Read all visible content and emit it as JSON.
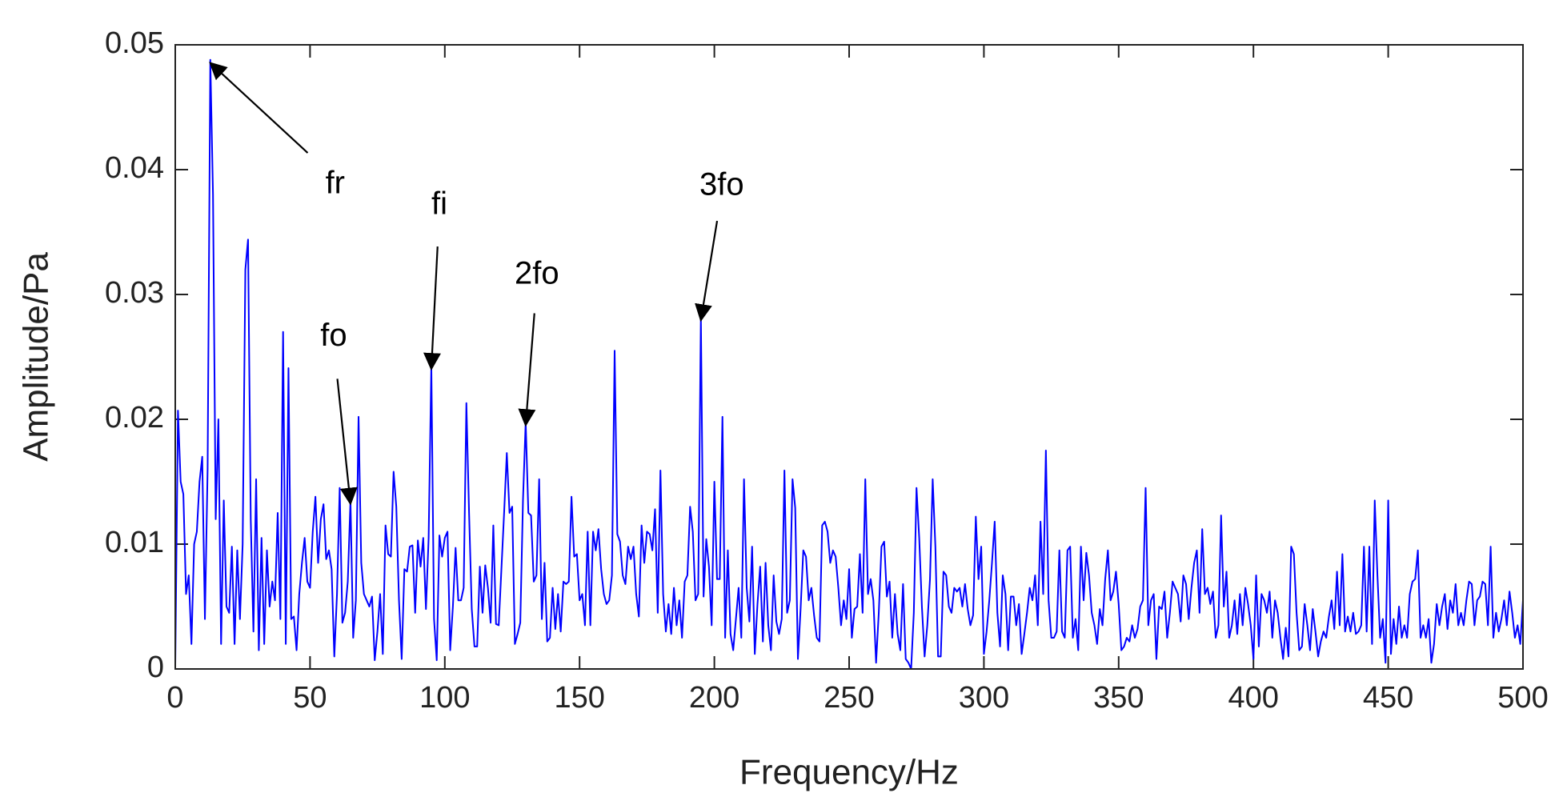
{
  "chart_data": {
    "type": "line",
    "xlabel": "Frequency/Hz",
    "ylabel": "Amplitude/Pa",
    "xlim": [
      0,
      500
    ],
    "ylim": [
      0,
      0.05
    ],
    "xticks": [
      0,
      50,
      100,
      150,
      200,
      250,
      300,
      350,
      400,
      450,
      500
    ],
    "yticks": [
      0,
      0.01,
      0.02,
      0.03,
      0.04,
      0.05
    ],
    "grid": false,
    "annotations": [
      {
        "text": "fr",
        "x": 13,
        "y": 0.0488
      },
      {
        "text": "fo",
        "x": 65,
        "y": 0.0135
      },
      {
        "text": "fi",
        "x": 95,
        "y": 0.0243
      },
      {
        "text": "2fo",
        "x": 130,
        "y": 0.0198
      },
      {
        "text": "3fo",
        "x": 195,
        "y": 0.0282
      }
    ],
    "series": [
      {
        "color": "#0000ff",
        "x": [
          0,
          1,
          2,
          3,
          4,
          5,
          6,
          7,
          8,
          9,
          10,
          11,
          12,
          13,
          14,
          15,
          16,
          17,
          18,
          19,
          20,
          21,
          22,
          23,
          24,
          25,
          26,
          27,
          28,
          29,
          30,
          31,
          32,
          33,
          34,
          35,
          36,
          37,
          38,
          39,
          40,
          41,
          42,
          43,
          44,
          45,
          46,
          47,
          48,
          49,
          50,
          51,
          52,
          53,
          54,
          55,
          56,
          57,
          58,
          59,
          60,
          61,
          62,
          63,
          64,
          65,
          66,
          67,
          68,
          69,
          70,
          71,
          72,
          73,
          74,
          75,
          76,
          77,
          78,
          79,
          80,
          81,
          82,
          83,
          84,
          85,
          86,
          87,
          88,
          89,
          90,
          91,
          92,
          93,
          94,
          95,
          96,
          97,
          98,
          99,
          100,
          101,
          102,
          103,
          104,
          105,
          106,
          107,
          108,
          109,
          110,
          111,
          112,
          113,
          114,
          115,
          116,
          117,
          118,
          119,
          120,
          121,
          122,
          123,
          124,
          125,
          126,
          127,
          128,
          129,
          130,
          131,
          132,
          133,
          134,
          135,
          136,
          137,
          138,
          139,
          140,
          141,
          142,
          143,
          144,
          145,
          146,
          147,
          148,
          149,
          150,
          151,
          152,
          153,
          154,
          155,
          156,
          157,
          158,
          159,
          160,
          161,
          162,
          163,
          164,
          165,
          166,
          167,
          168,
          169,
          170,
          171,
          172,
          173,
          174,
          175,
          176,
          177,
          178,
          179,
          180,
          181,
          182,
          183,
          184,
          185,
          186,
          187,
          188,
          189,
          190,
          191,
          192,
          193,
          194,
          195,
          196,
          197,
          198,
          199,
          200,
          201,
          202,
          203,
          204,
          205,
          206,
          207,
          208,
          209,
          210,
          211,
          212,
          213,
          214,
          215,
          216,
          217,
          218,
          219,
          220,
          221,
          222,
          223,
          224,
          225,
          226,
          227,
          228,
          229,
          230,
          231,
          232,
          233,
          234,
          235,
          236,
          237,
          238,
          239,
          240,
          241,
          242,
          243,
          244,
          245,
          246,
          247,
          248,
          249,
          250,
          251,
          252,
          253,
          254,
          255,
          256,
          257,
          258,
          259,
          260,
          261,
          262,
          263,
          264,
          265,
          266,
          267,
          268,
          269,
          270,
          271,
          272,
          273,
          274,
          275,
          276,
          277,
          278,
          279,
          280,
          281,
          282,
          283,
          284,
          285,
          286,
          287,
          288,
          289,
          290,
          291,
          292,
          293,
          294,
          295,
          296,
          297,
          298,
          299,
          300,
          301,
          302,
          303,
          304,
          305,
          306,
          307,
          308,
          309,
          310,
          311,
          312,
          313,
          314,
          315,
          316,
          317,
          318,
          319,
          320,
          321,
          322,
          323,
          324,
          325,
          326,
          327,
          328,
          329,
          330,
          331,
          332,
          333,
          334,
          335,
          336,
          337,
          338,
          339,
          340,
          341,
          342,
          343,
          344,
          345,
          346,
          347,
          348,
          349,
          350,
          351,
          352,
          353,
          354,
          355,
          356,
          357,
          358,
          359,
          360,
          361,
          362,
          363,
          364,
          365,
          366,
          367,
          368,
          369,
          370,
          371,
          372,
          373,
          374,
          375,
          376,
          377,
          378,
          379,
          380,
          381,
          382,
          383,
          384,
          385,
          386,
          387,
          388,
          389,
          390,
          391,
          392,
          393,
          394,
          395,
          396,
          397,
          398,
          399,
          400,
          401,
          402,
          403,
          404,
          405,
          406,
          407,
          408,
          409,
          410,
          411,
          412,
          413,
          414,
          415,
          416,
          417,
          418,
          419,
          420,
          421,
          422,
          423,
          424,
          425,
          426,
          427,
          428,
          429,
          430,
          431,
          432,
          433,
          434,
          435,
          436,
          437,
          438,
          439,
          440,
          441,
          442,
          443,
          444,
          445,
          446,
          447,
          448,
          449,
          450,
          451,
          452,
          453,
          454,
          455,
          456,
          457,
          458,
          459,
          460,
          461,
          462,
          463,
          464,
          465,
          466,
          467,
          468,
          469,
          470,
          471,
          472,
          473,
          474,
          475,
          476,
          477,
          478,
          479,
          480,
          481,
          482,
          483,
          484,
          485,
          486,
          487,
          488,
          489,
          490,
          491,
          492,
          493,
          494,
          495,
          496,
          497,
          498,
          499,
          500
        ],
        "values": [
          0.0003,
          0.0207,
          0.015,
          0.014,
          0.006,
          0.0075,
          0.002,
          0.01,
          0.011,
          0.015,
          0.017,
          0.004,
          0.016,
          0.0488,
          0.038,
          0.012,
          0.02,
          0.002,
          0.0135,
          0.005,
          0.0045,
          0.0098,
          0.002,
          0.0095,
          0.004,
          0.01,
          0.032,
          0.0344,
          0.012,
          0.003,
          0.0152,
          0.0015,
          0.0105,
          0.002,
          0.0095,
          0.005,
          0.007,
          0.0055,
          0.0125,
          0.004,
          0.027,
          0.002,
          0.0241,
          0.004,
          0.0042,
          0.0015,
          0.006,
          0.0085,
          0.0105,
          0.007,
          0.0065,
          0.011,
          0.0138,
          0.0085,
          0.012,
          0.0132,
          0.0088,
          0.0095,
          0.008,
          0.001,
          0.006,
          0.0145,
          0.0037,
          0.0045,
          0.007,
          0.0135,
          0.0025,
          0.0055,
          0.0202,
          0.0085,
          0.006,
          0.0055,
          0.005,
          0.0058,
          0.0007,
          0.003,
          0.006,
          0.0012,
          0.0115,
          0.0092,
          0.009,
          0.0158,
          0.013,
          0.0055,
          0.0008,
          0.008,
          0.0078,
          0.0098,
          0.0099,
          0.0045,
          0.0103,
          0.0082,
          0.0105,
          0.0048,
          0.0105,
          0.0243,
          0.004,
          0.0007,
          0.0107,
          0.009,
          0.0105,
          0.011,
          0.0015,
          0.005,
          0.0097,
          0.0055,
          0.0055,
          0.0065,
          0.0213,
          0.0125,
          0.0048,
          0.0018,
          0.0018,
          0.0082,
          0.0045,
          0.0083,
          0.0065,
          0.0037,
          0.0115,
          0.0036,
          0.0035,
          0.008,
          0.0125,
          0.0173,
          0.0125,
          0.013,
          0.002,
          0.0028,
          0.0037,
          0.0135,
          0.0198,
          0.0125,
          0.0123,
          0.007,
          0.0075,
          0.0152,
          0.004,
          0.0085,
          0.0022,
          0.0025,
          0.0065,
          0.0032,
          0.006,
          0.003,
          0.007,
          0.0068,
          0.007,
          0.0138,
          0.009,
          0.0092,
          0.0055,
          0.006,
          0.0035,
          0.011,
          0.0035,
          0.011,
          0.0095,
          0.0112,
          0.008,
          0.006,
          0.0052,
          0.0055,
          0.0075,
          0.0255,
          0.0108,
          0.0102,
          0.0075,
          0.0068,
          0.0098,
          0.0088,
          0.0098,
          0.006,
          0.0042,
          0.0115,
          0.0085,
          0.011,
          0.0108,
          0.0095,
          0.0128,
          0.0045,
          0.0159,
          0.006,
          0.003,
          0.0052,
          0.0028,
          0.0065,
          0.0035,
          0.0055,
          0.0025,
          0.007,
          0.0075,
          0.013,
          0.011,
          0.0055,
          0.006,
          0.0282,
          0.0058,
          0.0104,
          0.0082,
          0.0035,
          0.015,
          0.0072,
          0.0072,
          0.0202,
          0.0025,
          0.0095,
          0.0028,
          0.0015,
          0.004,
          0.0065,
          0.0025,
          0.0152,
          0.0065,
          0.0038,
          0.0098,
          0.0012,
          0.0052,
          0.0082,
          0.0022,
          0.0085,
          0.0035,
          0.0015,
          0.0075,
          0.0038,
          0.0028,
          0.004,
          0.0159,
          0.0045,
          0.0055,
          0.0152,
          0.0129,
          0.0008,
          0.0048,
          0.0095,
          0.009,
          0.0055,
          0.0065,
          0.0043,
          0.0025,
          0.0022,
          0.0115,
          0.0118,
          0.011,
          0.0085,
          0.0095,
          0.009,
          0.0065,
          0.0035,
          0.0055,
          0.004,
          0.008,
          0.0025,
          0.0048,
          0.005,
          0.0092,
          0.0045,
          0.0152,
          0.006,
          0.0072,
          0.0055,
          0.0005,
          0.0045,
          0.0098,
          0.0102,
          0.0058,
          0.007,
          0.0025,
          0.006,
          0.0028,
          0.0015,
          0.0068,
          0.0008,
          0.0005,
          0,
          0.0045,
          0.0145,
          0.0105,
          0.005,
          0.001,
          0.0035,
          0.0072,
          0.0152,
          0.0098,
          0.001,
          0.001,
          0.0078,
          0.0075,
          0.005,
          0.0045,
          0.0065,
          0.0062,
          0.0065,
          0.005,
          0.0068,
          0.0048,
          0.0035,
          0.0043,
          0.0122,
          0.0072,
          0.0098,
          0.0012,
          0.003,
          0.0055,
          0.0085,
          0.0118,
          0.0045,
          0.0018,
          0.0075,
          0.006,
          0.0015,
          0.0058,
          0.0058,
          0.0035,
          0.0052,
          0.0012,
          0.0028,
          0.0045,
          0.0065,
          0.0055,
          0.0075,
          0.0035,
          0.0118,
          0.006,
          0.0175,
          0.0055,
          0.0025,
          0.0025,
          0.003,
          0.0095,
          0.003,
          0.0025,
          0.0095,
          0.0098,
          0.0025,
          0.004,
          0.0015,
          0.0098,
          0.0055,
          0.0093,
          0.0075,
          0.0045,
          0.0035,
          0.002,
          0.0048,
          0.0035,
          0.0072,
          0.0095,
          0.0055,
          0.0062,
          0.0078,
          0.0052,
          0.0015,
          0.0018,
          0.0025,
          0.0022,
          0.0035,
          0.0025,
          0.0032,
          0.005,
          0.0055,
          0.0145,
          0.0035,
          0.0055,
          0.006,
          0.0008,
          0.005,
          0.0048,
          0.0062,
          0.0025,
          0.0045,
          0.007,
          0.0065,
          0.006,
          0.0038,
          0.0075,
          0.0068,
          0.004,
          0.0065,
          0.0085,
          0.0095,
          0.0045,
          0.0112,
          0.006,
          0.0065,
          0.0052,
          0.0062,
          0.0025,
          0.0035,
          0.0123,
          0.005,
          0.0078,
          0.0025,
          0.0035,
          0.0055,
          0.0028,
          0.006,
          0.0035,
          0.0065,
          0.0052,
          0.0035,
          0.0008,
          0.0075,
          0.0018,
          0.006,
          0.0055,
          0.0045,
          0.0062,
          0.0025,
          0.0055,
          0.0045,
          0.0025,
          0.0008,
          0.0033,
          0.001,
          0.0098,
          0.0092,
          0.0045,
          0.0015,
          0.0018,
          0.0052,
          0.0035,
          0.0015,
          0.0048,
          0.003,
          0.001,
          0.0022,
          0.003,
          0.0025,
          0.0042,
          0.0055,
          0.0032,
          0.0078,
          0.0035,
          0.0092,
          0.003,
          0.0042,
          0.003,
          0.0045,
          0.0028,
          0.003,
          0.0035,
          0.0098,
          0.003,
          0.0098,
          0.002,
          0.0135,
          0.0075,
          0.0025,
          0.004,
          0.0005,
          0.0135,
          0.0012,
          0.004,
          0.002,
          0.005,
          0.0025,
          0.0035,
          0.0025,
          0.006,
          0.007,
          0.0072,
          0.0095,
          0.0025,
          0.0035,
          0.0025,
          0.004,
          0.0005,
          0.002,
          0.0052,
          0.0035,
          0.005,
          0.006,
          0.0032,
          0.0055,
          0.0045,
          0.0068,
          0.0035,
          0.0045,
          0.0035,
          0.0055,
          0.007,
          0.0068,
          0.0035,
          0.0055,
          0.0058,
          0.007,
          0.0068,
          0.0035,
          0.0098,
          0.0025,
          0.0045,
          0.003,
          0.004,
          0.0055,
          0.0035,
          0.0062,
          0.0045,
          0.0025,
          0.0035,
          0.002,
          0.0055
        ]
      }
    ]
  }
}
